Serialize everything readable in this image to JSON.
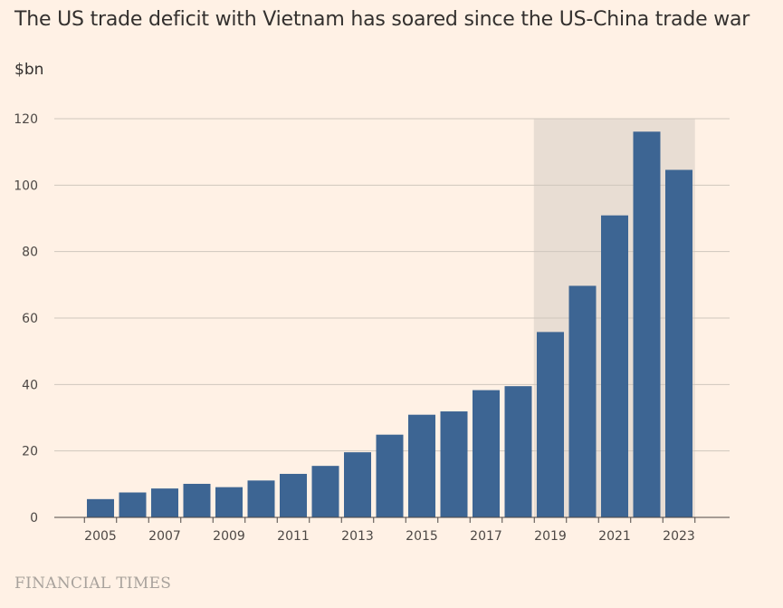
{
  "title": "The US trade deficit with Vietnam has soared since the US-China trade war",
  "unit_label": "$bn",
  "source": "FINANCIAL TIMES",
  "colors": {
    "background": "#fff1e5",
    "bar": "#3d6593",
    "highlight_band": "#e8ddd3",
    "grid": "#cfc6bd",
    "axis": "#4d4845"
  },
  "chart_data": {
    "type": "bar",
    "title": "The US trade deficit with Vietnam has soared since the US-China trade war",
    "ylabel": "$bn",
    "xlabel": "",
    "categories": [
      "2005",
      "2006",
      "2007",
      "2008",
      "2009",
      "2010",
      "2011",
      "2012",
      "2013",
      "2014",
      "2015",
      "2016",
      "2017",
      "2018",
      "2019",
      "2020",
      "2021",
      "2022",
      "2023"
    ],
    "values": [
      5.5,
      7.5,
      8.7,
      10.1,
      9.1,
      11.1,
      13.1,
      15.5,
      19.6,
      24.9,
      30.9,
      31.9,
      38.3,
      39.5,
      55.8,
      69.7,
      90.9,
      116.1,
      104.6
    ],
    "x_tick_labels": [
      "2005",
      "2007",
      "2009",
      "2011",
      "2013",
      "2015",
      "2017",
      "2019",
      "2021",
      "2023"
    ],
    "y_ticks": [
      0,
      20,
      40,
      60,
      80,
      100,
      120
    ],
    "ylim": [
      0,
      120
    ],
    "grid": true,
    "highlight_range": [
      "2019",
      "2023"
    ]
  }
}
